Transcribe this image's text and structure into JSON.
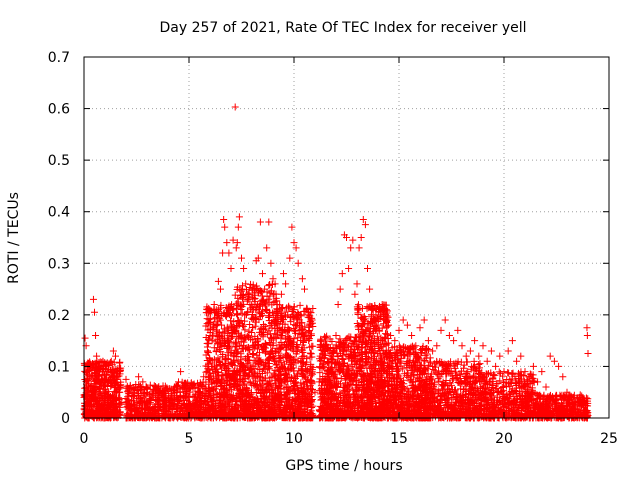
{
  "chart_data": {
    "type": "scatter",
    "title": "Day 257 of 2021, Rate Of TEC Index for receiver yell",
    "xlabel": "GPS time / hours",
    "ylabel": "ROTI / TECUs",
    "xlim": [
      0,
      25
    ],
    "ylim": [
      0,
      0.7
    ],
    "x_ticks": [
      0,
      5,
      10,
      15,
      20,
      25
    ],
    "x_tick_labels": [
      "0",
      "5",
      "10",
      "15",
      "20",
      "25"
    ],
    "y_ticks": [
      0,
      0.1,
      0.2,
      0.3,
      0.4,
      0.5,
      0.6,
      0.7
    ],
    "y_tick_labels": [
      "0",
      "0.1",
      "0.2",
      "0.3",
      "0.4",
      "0.5",
      "0.6",
      "0.7"
    ],
    "grid": true,
    "marker": "+",
    "color": "#ff0000",
    "series": [
      {
        "values_note_free": true,
        "points": [
          [
            0.05,
            0.155
          ],
          [
            0.1,
            0.14
          ],
          [
            0.2,
            0.09
          ],
          [
            0.3,
            0.06
          ],
          [
            0.45,
            0.23
          ],
          [
            0.5,
            0.205
          ],
          [
            0.55,
            0.16
          ],
          [
            0.6,
            0.12
          ],
          [
            0.7,
            0.1
          ],
          [
            0.8,
            0.095
          ],
          [
            0.9,
            0.11
          ],
          [
            1.0,
            0.1
          ],
          [
            1.1,
            0.09
          ],
          [
            1.2,
            0.105
          ],
          [
            1.3,
            0.11
          ],
          [
            1.4,
            0.13
          ],
          [
            1.5,
            0.12
          ],
          [
            1.6,
            0.08
          ],
          [
            1.7,
            0.05
          ],
          [
            1.8,
            0.03
          ],
          [
            2.0,
            0.075
          ],
          [
            2.2,
            0.06
          ],
          [
            2.4,
            0.055
          ],
          [
            2.6,
            0.08
          ],
          [
            2.8,
            0.07
          ],
          [
            3.0,
            0.05
          ],
          [
            3.3,
            0.04
          ],
          [
            3.6,
            0.035
          ],
          [
            3.9,
            0.04
          ],
          [
            4.2,
            0.035
          ],
          [
            4.5,
            0.07
          ],
          [
            4.6,
            0.09
          ],
          [
            4.7,
            0.06
          ],
          [
            5.0,
            0.04
          ],
          [
            5.3,
            0.045
          ],
          [
            5.5,
            0.05
          ],
          [
            5.7,
            0.08
          ],
          [
            5.9,
            0.1
          ],
          [
            6.0,
            0.16
          ],
          [
            6.1,
            0.15
          ],
          [
            6.2,
            0.22
          ],
          [
            6.3,
            0.21
          ],
          [
            6.4,
            0.265
          ],
          [
            6.5,
            0.25
          ],
          [
            6.6,
            0.32
          ],
          [
            6.65,
            0.385
          ],
          [
            6.7,
            0.37
          ],
          [
            6.8,
            0.34
          ],
          [
            6.9,
            0.32
          ],
          [
            7.0,
            0.29
          ],
          [
            7.1,
            0.345
          ],
          [
            7.2,
            0.603
          ],
          [
            7.25,
            0.33
          ],
          [
            7.3,
            0.34
          ],
          [
            7.35,
            0.37
          ],
          [
            7.4,
            0.39
          ],
          [
            7.5,
            0.31
          ],
          [
            7.6,
            0.29
          ],
          [
            7.7,
            0.26
          ],
          [
            7.8,
            0.24
          ],
          [
            7.9,
            0.22
          ],
          [
            8.0,
            0.21
          ],
          [
            8.1,
            0.25
          ],
          [
            8.2,
            0.305
          ],
          [
            8.3,
            0.31
          ],
          [
            8.4,
            0.38
          ],
          [
            8.5,
            0.28
          ],
          [
            8.6,
            0.25
          ],
          [
            8.7,
            0.33
          ],
          [
            8.8,
            0.38
          ],
          [
            8.9,
            0.3
          ],
          [
            9.0,
            0.27
          ],
          [
            9.1,
            0.26
          ],
          [
            9.2,
            0.22
          ],
          [
            9.3,
            0.21
          ],
          [
            9.4,
            0.24
          ],
          [
            9.5,
            0.28
          ],
          [
            9.6,
            0.26
          ],
          [
            9.7,
            0.2
          ],
          [
            9.8,
            0.31
          ],
          [
            9.9,
            0.37
          ],
          [
            10.0,
            0.34
          ],
          [
            10.1,
            0.33
          ],
          [
            10.2,
            0.3
          ],
          [
            10.3,
            0.2
          ],
          [
            10.4,
            0.27
          ],
          [
            10.5,
            0.25
          ],
          [
            10.6,
            0.21
          ],
          [
            10.7,
            0.15
          ],
          [
            10.8,
            0.1
          ],
          [
            11.0,
            0.05
          ],
          [
            11.2,
            0.07
          ],
          [
            11.4,
            0.1
          ],
          [
            11.6,
            0.08
          ],
          [
            11.8,
            0.12
          ],
          [
            12.0,
            0.16
          ],
          [
            12.1,
            0.22
          ],
          [
            12.2,
            0.25
          ],
          [
            12.3,
            0.28
          ],
          [
            12.4,
            0.355
          ],
          [
            12.5,
            0.35
          ],
          [
            12.6,
            0.29
          ],
          [
            12.7,
            0.33
          ],
          [
            12.8,
            0.345
          ],
          [
            12.9,
            0.24
          ],
          [
            13.0,
            0.26
          ],
          [
            13.1,
            0.33
          ],
          [
            13.2,
            0.35
          ],
          [
            13.3,
            0.385
          ],
          [
            13.4,
            0.375
          ],
          [
            13.5,
            0.29
          ],
          [
            13.6,
            0.25
          ],
          [
            13.7,
            0.21
          ],
          [
            13.8,
            0.19
          ],
          [
            13.9,
            0.2
          ],
          [
            14.0,
            0.18
          ],
          [
            14.2,
            0.22
          ],
          [
            14.4,
            0.21
          ],
          [
            14.6,
            0.16
          ],
          [
            14.8,
            0.15
          ],
          [
            15.0,
            0.17
          ],
          [
            15.2,
            0.19
          ],
          [
            15.4,
            0.18
          ],
          [
            15.6,
            0.16
          ],
          [
            15.8,
            0.14
          ],
          [
            16.0,
            0.175
          ],
          [
            16.2,
            0.19
          ],
          [
            16.4,
            0.15
          ],
          [
            16.6,
            0.13
          ],
          [
            16.8,
            0.14
          ],
          [
            17.0,
            0.17
          ],
          [
            17.2,
            0.19
          ],
          [
            17.4,
            0.16
          ],
          [
            17.6,
            0.15
          ],
          [
            17.8,
            0.17
          ],
          [
            18.0,
            0.14
          ],
          [
            18.2,
            0.12
          ],
          [
            18.4,
            0.13
          ],
          [
            18.6,
            0.15
          ],
          [
            18.8,
            0.12
          ],
          [
            19.0,
            0.14
          ],
          [
            19.2,
            0.11
          ],
          [
            19.4,
            0.13
          ],
          [
            19.6,
            0.1
          ],
          [
            19.8,
            0.12
          ],
          [
            20.0,
            0.09
          ],
          [
            20.2,
            0.13
          ],
          [
            20.4,
            0.15
          ],
          [
            20.6,
            0.11
          ],
          [
            20.8,
            0.12
          ],
          [
            21.0,
            0.09
          ],
          [
            21.2,
            0.08
          ],
          [
            21.4,
            0.1
          ],
          [
            21.6,
            0.07
          ],
          [
            21.8,
            0.09
          ],
          [
            22.0,
            0.06
          ],
          [
            22.2,
            0.12
          ],
          [
            22.4,
            0.11
          ],
          [
            22.6,
            0.1
          ],
          [
            22.8,
            0.08
          ],
          [
            23.0,
            0.05
          ],
          [
            23.2,
            0.04
          ],
          [
            23.4,
            0.03
          ],
          [
            23.6,
            0.04
          ],
          [
            23.8,
            0.035
          ],
          [
            23.95,
            0.175
          ],
          [
            23.97,
            0.16
          ],
          [
            24.0,
            0.125
          ]
        ],
        "density": [
          {
            "x": [
              0.0,
              1.75
            ],
            "y": [
              0.0,
              0.11
            ],
            "n": 520
          },
          {
            "x": [
              2.0,
              4.4
            ],
            "y": [
              0.0,
              0.065
            ],
            "n": 380
          },
          {
            "x": [
              4.4,
              5.8
            ],
            "y": [
              0.0,
              0.07
            ],
            "n": 260
          },
          {
            "x": [
              5.8,
              7.2
            ],
            "y": [
              0.0,
              0.22
            ],
            "n": 520
          },
          {
            "x": [
              7.2,
              9.2
            ],
            "y": [
              0.0,
              0.26
            ],
            "n": 780
          },
          {
            "x": [
              9.2,
              10.9
            ],
            "y": [
              0.0,
              0.22
            ],
            "n": 620
          },
          {
            "x": [
              11.2,
              13.0
            ],
            "y": [
              0.0,
              0.16
            ],
            "n": 620
          },
          {
            "x": [
              13.0,
              14.5
            ],
            "y": [
              0.0,
              0.22
            ],
            "n": 700
          },
          {
            "x": [
              14.5,
              16.5
            ],
            "y": [
              0.0,
              0.14
            ],
            "n": 650
          },
          {
            "x": [
              16.5,
              19.0
            ],
            "y": [
              0.0,
              0.11
            ],
            "n": 560
          },
          {
            "x": [
              19.0,
              21.5
            ],
            "y": [
              0.0,
              0.09
            ],
            "n": 480
          },
          {
            "x": [
              21.5,
              24.0
            ],
            "y": [
              0.0,
              0.045
            ],
            "n": 420
          }
        ]
      }
    ]
  }
}
